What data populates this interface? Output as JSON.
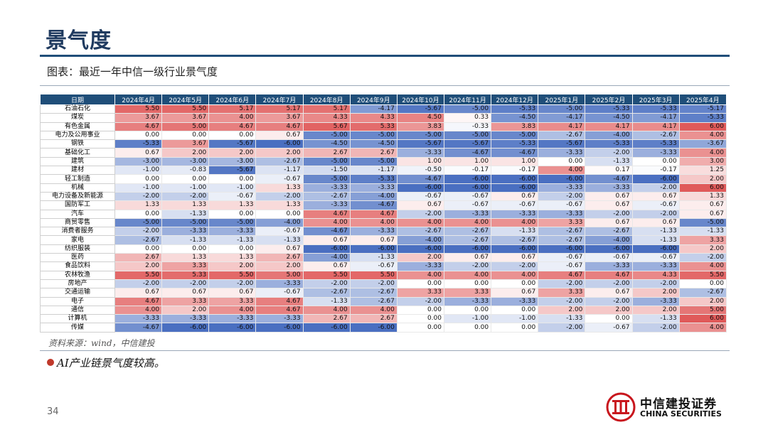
{
  "page": {
    "title": "景气度",
    "subtitle": "图表：最近一年中信一级行业景气度",
    "source": "资料来源：wind，中信建投",
    "bullet": "AI产业链景气度较高。",
    "page_number": "34",
    "logo_cn": "中信建投证券",
    "logo_en": "CHINA SECURITIES",
    "logo_icon": "citic-securities-logo-icon"
  },
  "colors": {
    "header_bg": "#1f4e79",
    "positive": "#e05a5a",
    "negative": "#4a6fc1"
  },
  "table": {
    "header_label": "日期",
    "months": [
      "2024年4月",
      "2024年5月",
      "2024年6月",
      "2024年7月",
      "2024年8月",
      "2024年9月",
      "2024年10月",
      "2024年11月",
      "2024年12月",
      "2025年1月",
      "2025年2月",
      "2025年3月",
      "2025年4月"
    ],
    "rows": [
      {
        "name": "石油石化",
        "values": [
          "5.50",
          "5.50",
          "5.17",
          "5.17",
          "5.17",
          "-4.17",
          "-5.67",
          "-5.00",
          "-5.33",
          "-5.00",
          "-5.33",
          "-5.33",
          "-5.17"
        ]
      },
      {
        "name": "煤炭",
        "values": [
          "3.67",
          "3.67",
          "4.00",
          "3.67",
          "4.33",
          "4.33",
          "4.50",
          "0.33",
          "-4.50",
          "-4.17",
          "-4.50",
          "-4.17",
          "-5.33"
        ]
      },
      {
        "name": "有色金属",
        "values": [
          "4.67",
          "5.00",
          "4.67",
          "4.67",
          "5.67",
          "5.33",
          "3.83",
          "-0.33",
          "3.83",
          "4.17",
          "4.17",
          "4.17",
          "6.00"
        ]
      },
      {
        "name": "电力及公用事业",
        "values": [
          "0.00",
          "0.00",
          "0.00",
          "0.67",
          "-5.00",
          "-5.00",
          "-5.00",
          "-5.00",
          "-5.00",
          "-2.67",
          "-4.00",
          "-2.67",
          "4.00"
        ]
      },
      {
        "name": "钢铁",
        "values": [
          "-5.33",
          "3.67",
          "-5.67",
          "-6.00",
          "-4.50",
          "-4.50",
          "-5.67",
          "-5.67",
          "-5.33",
          "-5.67",
          "-5.33",
          "-5.33",
          "-3.67"
        ]
      },
      {
        "name": "基础化工",
        "values": [
          "0.67",
          "2.00",
          "2.00",
          "2.00",
          "2.67",
          "2.67",
          "-3.33",
          "-4.67",
          "-4.67",
          "-3.33",
          "-2.00",
          "-3.33",
          "4.00"
        ]
      },
      {
        "name": "建筑",
        "values": [
          "-3.00",
          "-3.00",
          "-3.00",
          "-2.67",
          "-5.00",
          "-5.00",
          "1.00",
          "1.00",
          "1.00",
          "0.00",
          "-1.33",
          "0.00",
          "3.00"
        ]
      },
      {
        "name": "建材",
        "values": [
          "-1.00",
          "-0.83",
          "-5.67",
          "-1.17",
          "-1.50",
          "-1.17",
          "-0.50",
          "-0.17",
          "-0.17",
          "4.00",
          "0.17",
          "-0.17",
          "1.25"
        ]
      },
      {
        "name": "轻工制造",
        "values": [
          "0.00",
          "0.00",
          "0.00",
          "-0.67",
          "-5.00",
          "-5.33",
          "-4.67",
          "-6.00",
          "-6.00",
          "-6.00",
          "-4.67",
          "-6.00",
          "2.00"
        ]
      },
      {
        "name": "机械",
        "values": [
          "-1.00",
          "-1.00",
          "-1.00",
          "1.33",
          "-3.33",
          "-3.33",
          "-6.00",
          "-6.00",
          "-6.00",
          "-3.33",
          "-3.33",
          "-2.00",
          "6.00"
        ]
      },
      {
        "name": "电力设备及新能源",
        "values": [
          "-2.00",
          "-2.00",
          "-0.67",
          "-2.00",
          "-2.67",
          "-4.00",
          "-0.67",
          "-0.67",
          "0.67",
          "-2.00",
          "0.67",
          "0.67",
          "1.33"
        ]
      },
      {
        "name": "国防军工",
        "values": [
          "1.33",
          "1.33",
          "1.33",
          "1.33",
          "-3.33",
          "-4.67",
          "0.67",
          "-0.67",
          "-0.67",
          "-0.67",
          "0.67",
          "-0.67",
          "0.67"
        ]
      },
      {
        "name": "汽车",
        "values": [
          "0.00",
          "-1.33",
          "0.00",
          "0.00",
          "4.67",
          "4.67",
          "-2.00",
          "-3.33",
          "-3.33",
          "-3.33",
          "-2.00",
          "-2.00",
          "0.67"
        ]
      },
      {
        "name": "商贸零售",
        "values": [
          "-5.00",
          "-5.00",
          "-5.00",
          "-4.00",
          "4.00",
          "4.00",
          "4.00",
          "4.00",
          "4.00",
          "3.33",
          "0.67",
          "0.67",
          "-5.00"
        ]
      },
      {
        "name": "消费者服务",
        "values": [
          "-2.00",
          "-3.33",
          "-3.33",
          "-0.67",
          "-4.67",
          "-3.33",
          "-2.67",
          "-2.67",
          "-1.33",
          "-2.67",
          "-2.67",
          "-1.33",
          "-1.33"
        ]
      },
      {
        "name": "家电",
        "values": [
          "-2.67",
          "-1.33",
          "-1.33",
          "-1.33",
          "0.67",
          "0.67",
          "-4.00",
          "-2.67",
          "-2.67",
          "-2.67",
          "-4.00",
          "-1.33",
          "3.33"
        ]
      },
      {
        "name": "纺织服装",
        "values": [
          "0.00",
          "0.00",
          "0.00",
          "0.67",
          "-6.00",
          "-6.00",
          "-6.00",
          "-6.00",
          "-6.00",
          "-6.00",
          "-6.00",
          "-6.00",
          "2.00"
        ]
      },
      {
        "name": "医药",
        "values": [
          "2.67",
          "1.33",
          "1.33",
          "2.67",
          "-4.00",
          "-1.33",
          "2.00",
          "0.67",
          "0.67",
          "-0.67",
          "-0.67",
          "-0.67",
          "-2.00"
        ]
      },
      {
        "name": "食品饮料",
        "values": [
          "2.00",
          "3.33",
          "2.00",
          "2.00",
          "0.67",
          "-0.67",
          "-3.33",
          "-2.00",
          "-2.00",
          "-0.67",
          "-3.33",
          "-3.33",
          "4.00"
        ]
      },
      {
        "name": "农林牧渔",
        "values": [
          "5.50",
          "5.33",
          "5.50",
          "5.00",
          "5.50",
          "5.50",
          "4.00",
          "4.00",
          "4.00",
          "4.67",
          "4.67",
          "4.33",
          "5.50"
        ]
      },
      {
        "name": "房地产",
        "values": [
          "-2.00",
          "-2.00",
          "-2.00",
          "-3.33",
          "-2.00",
          "-2.00",
          "0.00",
          "0.00",
          "0.00",
          "-2.00",
          "-2.00",
          "-2.00",
          "0.00"
        ]
      },
      {
        "name": "交通运输",
        "values": [
          "0.67",
          "0.67",
          "0.67",
          "-0.67",
          "-2.67",
          "-2.67",
          "3.33",
          "3.33",
          "0.67",
          "3.33",
          "0.67",
          "2.00",
          "-2.67"
        ]
      },
      {
        "name": "电子",
        "values": [
          "4.67",
          "3.33",
          "3.33",
          "4.67",
          "-1.33",
          "-2.67",
          "-2.00",
          "-3.33",
          "-3.33",
          "-2.00",
          "-2.00",
          "-3.33",
          "2.00"
        ]
      },
      {
        "name": "通信",
        "values": [
          "4.00",
          "2.00",
          "4.00",
          "4.67",
          "4.00",
          "4.00",
          "0.00",
          "0.00",
          "0.00",
          "2.00",
          "2.00",
          "2.00",
          "5.00"
        ]
      },
      {
        "name": "计算机",
        "values": [
          "-3.33",
          "-3.33",
          "-3.33",
          "-3.33",
          "2.67",
          "2.67",
          "0.00",
          "-1.00",
          "-1.00",
          "-1.33",
          "0.00",
          "-1.33",
          "6.00"
        ]
      },
      {
        "name": "传媒",
        "values": [
          "-4.67",
          "-6.00",
          "-6.00",
          "-6.00",
          "-6.00",
          "-6.00",
          "0.00",
          "0.00",
          "0.00",
          "-2.00",
          "-0.67",
          "-2.00",
          "4.00"
        ]
      }
    ]
  }
}
